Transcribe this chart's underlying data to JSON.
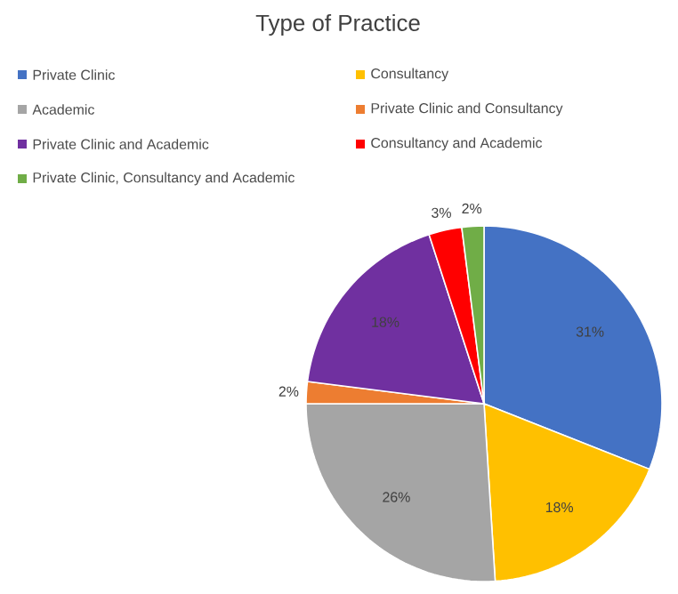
{
  "chart_data": {
    "type": "pie",
    "title": "Type of Practice",
    "categories": [
      "Private Clinic",
      "Consultancy",
      "Academic",
      "Private Clinic and Consultancy",
      "Private Clinic and Academic",
      "Consultancy and Academic",
      "Private Clinic, Consultancy and Academic"
    ],
    "values": [
      31,
      18,
      26,
      2,
      18,
      3,
      2
    ],
    "value_labels": [
      "31%",
      "18%",
      "26%",
      "2%",
      "18%",
      "3%",
      "2%"
    ],
    "colors": [
      "#4472c4",
      "#ffc000",
      "#a5a5a5",
      "#ed7d31",
      "#7030a0",
      "#ff0000",
      "#70ad47"
    ],
    "legend": "top"
  }
}
